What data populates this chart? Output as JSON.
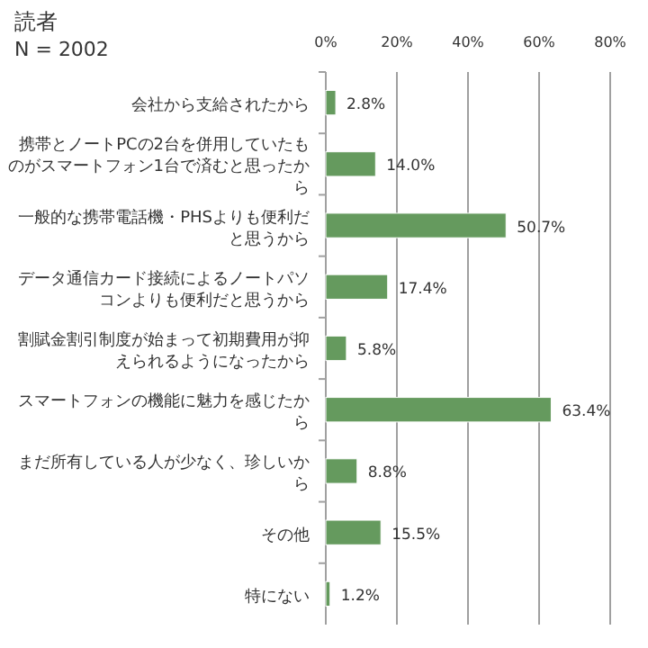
{
  "chart_data": {
    "type": "bar",
    "orientation": "horizontal",
    "title": "読者",
    "subtitle": "N = 2002",
    "categories": [
      "会社から支給されたから",
      "携帯とノートPCの2台を併用していたものがスマートフォン1台で済むと思ったから",
      "一般的な携帯電話機・PHSよりも便利だと思うから",
      "データ通信カード接続によるノートパソコンよりも便利だと思うから",
      "割賦金割引制度が始まって初期費用が抑えられるようになったから",
      "スマートフォンの機能に魅力を感じたから",
      "まだ所有している人が少なく、珍しいから",
      "その他",
      "特にない"
    ],
    "values": [
      2.8,
      14.0,
      50.7,
      17.4,
      5.8,
      63.4,
      8.8,
      15.5,
      1.2
    ],
    "value_labels": [
      "2.8%",
      "14.0%",
      "50.7%",
      "17.4%",
      "5.8%",
      "63.4%",
      "8.8%",
      "15.5%",
      "1.2%"
    ],
    "color": "#659a5e",
    "xlim": [
      0,
      80
    ],
    "xticks": [
      {
        "value": 0,
        "label": "0%"
      },
      {
        "value": 20,
        "label": "20%"
      },
      {
        "value": 40,
        "label": "40%"
      },
      {
        "value": 60,
        "label": "60%"
      },
      {
        "value": 80,
        "label": "80%"
      }
    ],
    "grid": "x"
  }
}
